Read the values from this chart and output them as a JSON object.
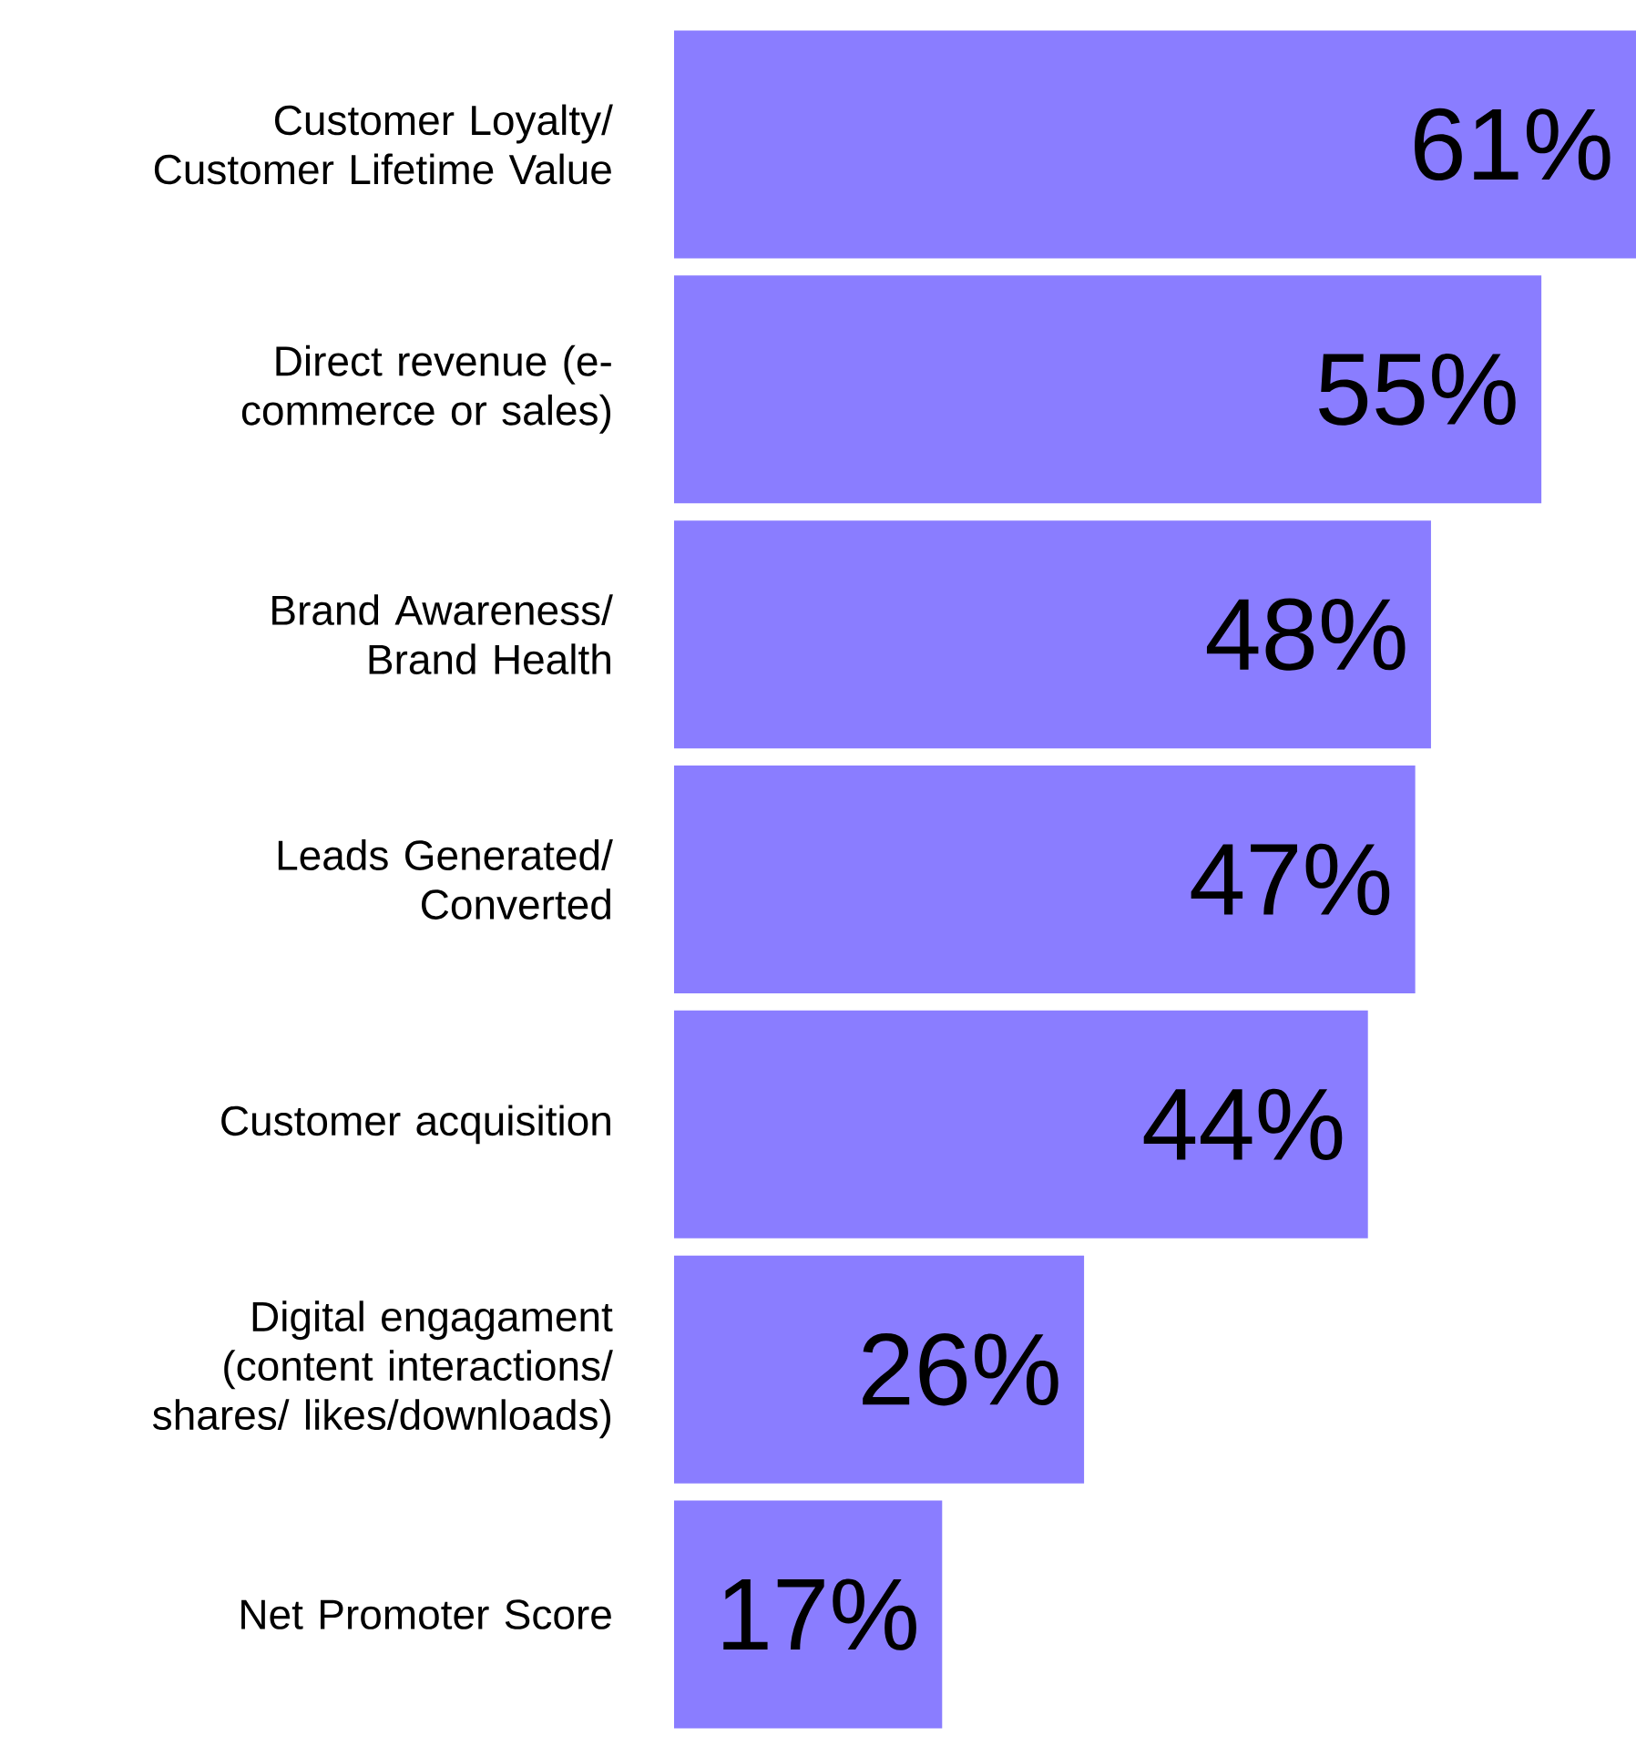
{
  "chart_data": {
    "type": "bar",
    "orientation": "horizontal",
    "categories": [
      "Customer Loyalty/ Customer Lifetime Value",
      "Direct revenue (e-commerce or sales)",
      "Brand Awareness/ Brand Health",
      "Leads Generated/ Converted",
      "Customer acquisition",
      "Digital engagament (content interactions/ shares/ likes/downloads)",
      "Net Promoter Score"
    ],
    "values": [
      61,
      55,
      48,
      47,
      44,
      26,
      17
    ],
    "value_labels": [
      "61%",
      "55%",
      "48%",
      "47%",
      "44%",
      "26%",
      "17%"
    ],
    "color": "#8a7dff"
  }
}
